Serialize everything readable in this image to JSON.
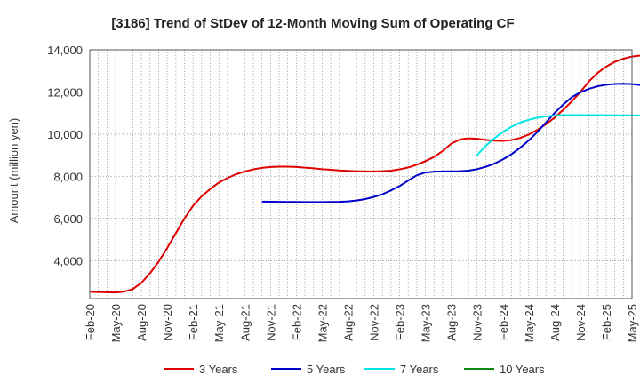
{
  "chart_data": {
    "type": "line",
    "title": "[3186]  Trend of StDev of 12-Month Moving Sum of Operating CF",
    "xlabel": "",
    "ylabel": "Amount (million yen)",
    "ylim": [
      2200,
      14000
    ],
    "yticks": [
      4000,
      6000,
      8000,
      10000,
      12000,
      14000
    ],
    "ytick_labels": [
      "4,000",
      "6,000",
      "8,000",
      "10,000",
      "12,000",
      "14,000"
    ],
    "x_tick_labels": [
      "Feb-20",
      "May-20",
      "Aug-20",
      "Nov-20",
      "Feb-21",
      "May-21",
      "Aug-21",
      "Nov-21",
      "Feb-22",
      "May-22",
      "Aug-22",
      "Nov-22",
      "Feb-23",
      "May-23",
      "Aug-23",
      "Nov-23",
      "Feb-24",
      "May-24",
      "Aug-24",
      "Nov-24",
      "Feb-25",
      "May-25"
    ],
    "x_start": "2020-02",
    "x_end": "2025-05",
    "grid": true,
    "legend_position": "bottom",
    "series": [
      {
        "name": "3 Years",
        "color": "#e00000",
        "start": "2020-02",
        "values": [
          2520,
          2510,
          2500,
          2490,
          2530,
          2650,
          2950,
          3400,
          3950,
          4600,
          5300,
          6000,
          6600,
          7050,
          7400,
          7700,
          7920,
          8100,
          8230,
          8330,
          8400,
          8440,
          8460,
          8460,
          8440,
          8410,
          8380,
          8340,
          8310,
          8280,
          8260,
          8240,
          8230,
          8230,
          8240,
          8270,
          8330,
          8420,
          8550,
          8720,
          8920,
          9200,
          9550,
          9750,
          9800,
          9780,
          9730,
          9690,
          9680,
          9720,
          9820,
          9980,
          10200,
          10470,
          10780,
          11150,
          11550,
          12000,
          12500,
          12900,
          13200,
          13430,
          13580,
          13680,
          13730,
          13740,
          13745,
          13745,
          13748,
          13748,
          13748,
          13748,
          13748
        ]
      },
      {
        "name": "5 Years",
        "color": "#0000cc",
        "start": "2021-10",
        "values": [
          6800,
          6795,
          6790,
          6785,
          6785,
          6780,
          6780,
          6780,
          6785,
          6790,
          6810,
          6850,
          6920,
          7020,
          7150,
          7330,
          7540,
          7800,
          8050,
          8180,
          8220,
          8230,
          8235,
          8240,
          8270,
          8340,
          8450,
          8600,
          8800,
          9050,
          9350,
          9700,
          10100,
          10550,
          11000,
          11400,
          11750,
          11980,
          12150,
          12270,
          12340,
          12380,
          12390,
          12370,
          12330,
          12270,
          12190,
          12080,
          11950,
          11800
        ]
      },
      {
        "name": "7 Years",
        "color": "#00e5e5",
        "start": "2023-11",
        "values": [
          9000,
          9450,
          9800,
          10100,
          10350,
          10550,
          10680,
          10780,
          10840,
          10880,
          10900,
          10905,
          10905,
          10905,
          10900,
          10895,
          10890,
          10890,
          10885,
          10885
        ]
      },
      {
        "name": "10 Years",
        "color": "#118811",
        "start": "2024-11",
        "values": []
      }
    ]
  }
}
